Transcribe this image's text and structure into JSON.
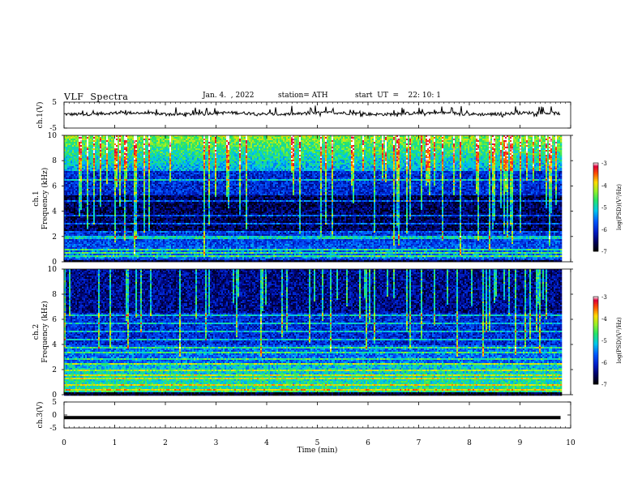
{
  "header": {
    "title": "VLF  Spectra",
    "date": "Jan. 4.  , 2022",
    "station": "station= ATH",
    "start": "start  UT  =    22: 10: 1"
  },
  "chart_data": [
    {
      "type": "line",
      "name": "ch1-waveform",
      "ylabel": "ch.1(V)",
      "ylim": [
        -5,
        5
      ],
      "yticks": [
        "5",
        "-5"
      ],
      "xlim": [
        0,
        10
      ],
      "baseline": 0.6,
      "color": "#000000"
    },
    {
      "type": "heatmap",
      "name": "ch1-spectrogram",
      "ylabel": "ch.1\nFrequency  (kHz)",
      "ylim": [
        0,
        10
      ],
      "yticks": [
        "0",
        "2",
        "4",
        "6",
        "8",
        "10"
      ],
      "xlim": [
        0,
        10
      ],
      "data_end_min": 9.8,
      "colorbar": {
        "label": "log(PSD)(V²/Hz)",
        "range": [
          -7,
          -3
        ],
        "ticks": [
          "-3",
          "-4",
          "-5",
          "-6",
          "-7"
        ]
      }
    },
    {
      "type": "heatmap",
      "name": "ch2-spectrogram",
      "ylabel": "ch.2\nFrequency  (kHz)",
      "ylim": [
        0,
        10
      ],
      "yticks": [
        "0",
        "2",
        "4",
        "6",
        "8",
        "10"
      ],
      "xlim": [
        0,
        10
      ],
      "data_end_min": 9.8,
      "colorbar": {
        "label": "log(PSD)(V²/Hz)",
        "range": [
          -7,
          -3
        ],
        "ticks": [
          "-3",
          "-4",
          "-5",
          "-6",
          "-7"
        ]
      }
    },
    {
      "type": "line",
      "name": "ch3-waveform",
      "ylabel": "ch.3(V)",
      "ylim": [
        -5,
        5
      ],
      "yticks": [
        "5",
        "0",
        "-5"
      ],
      "xlim": [
        0,
        10
      ],
      "baseline": -1.0,
      "color": "#000000"
    }
  ],
  "x_axis": {
    "label": "Time  (min)",
    "ticks": [
      "0",
      "1",
      "2",
      "3",
      "4",
      "5",
      "6",
      "7",
      "8",
      "9",
      "10"
    ]
  }
}
